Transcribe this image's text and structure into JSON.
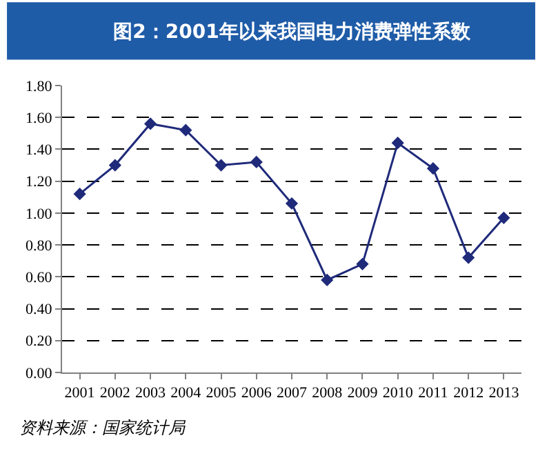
{
  "chart_data": {
    "type": "line",
    "title": "图2：2001年以来我国电力消费弹性系数",
    "categories": [
      "2001",
      "2002",
      "2003",
      "2004",
      "2005",
      "2006",
      "2007",
      "2008",
      "2009",
      "2010",
      "2011",
      "2012",
      "2013"
    ],
    "series": [
      {
        "color": "#1f2a7a",
        "values": [
          1.12,
          1.3,
          1.56,
          1.52,
          1.3,
          1.32,
          1.06,
          0.58,
          0.68,
          1.44,
          1.28,
          0.72,
          0.97
        ]
      }
    ],
    "ylim": [
      0,
      1.8
    ],
    "yticks": [
      {
        "value": 0,
        "label": "0.00"
      },
      {
        "value": 0.2,
        "label": "0.20"
      },
      {
        "value": 0.4,
        "label": "0.40"
      },
      {
        "value": 0.6,
        "label": "0.60"
      },
      {
        "value": 0.8,
        "label": "0.80"
      },
      {
        "value": 1.0,
        "label": "1.00"
      },
      {
        "value": 1.2,
        "label": "1.20"
      },
      {
        "value": 1.4,
        "label": "1.40"
      },
      {
        "value": 1.6,
        "label": "1.60"
      },
      {
        "value": 1.8,
        "label": "1.80"
      }
    ],
    "grid": "y",
    "marker": "diamond",
    "line_style": "solid",
    "annotations": [
      "资料来源：国家统计局"
    ]
  }
}
